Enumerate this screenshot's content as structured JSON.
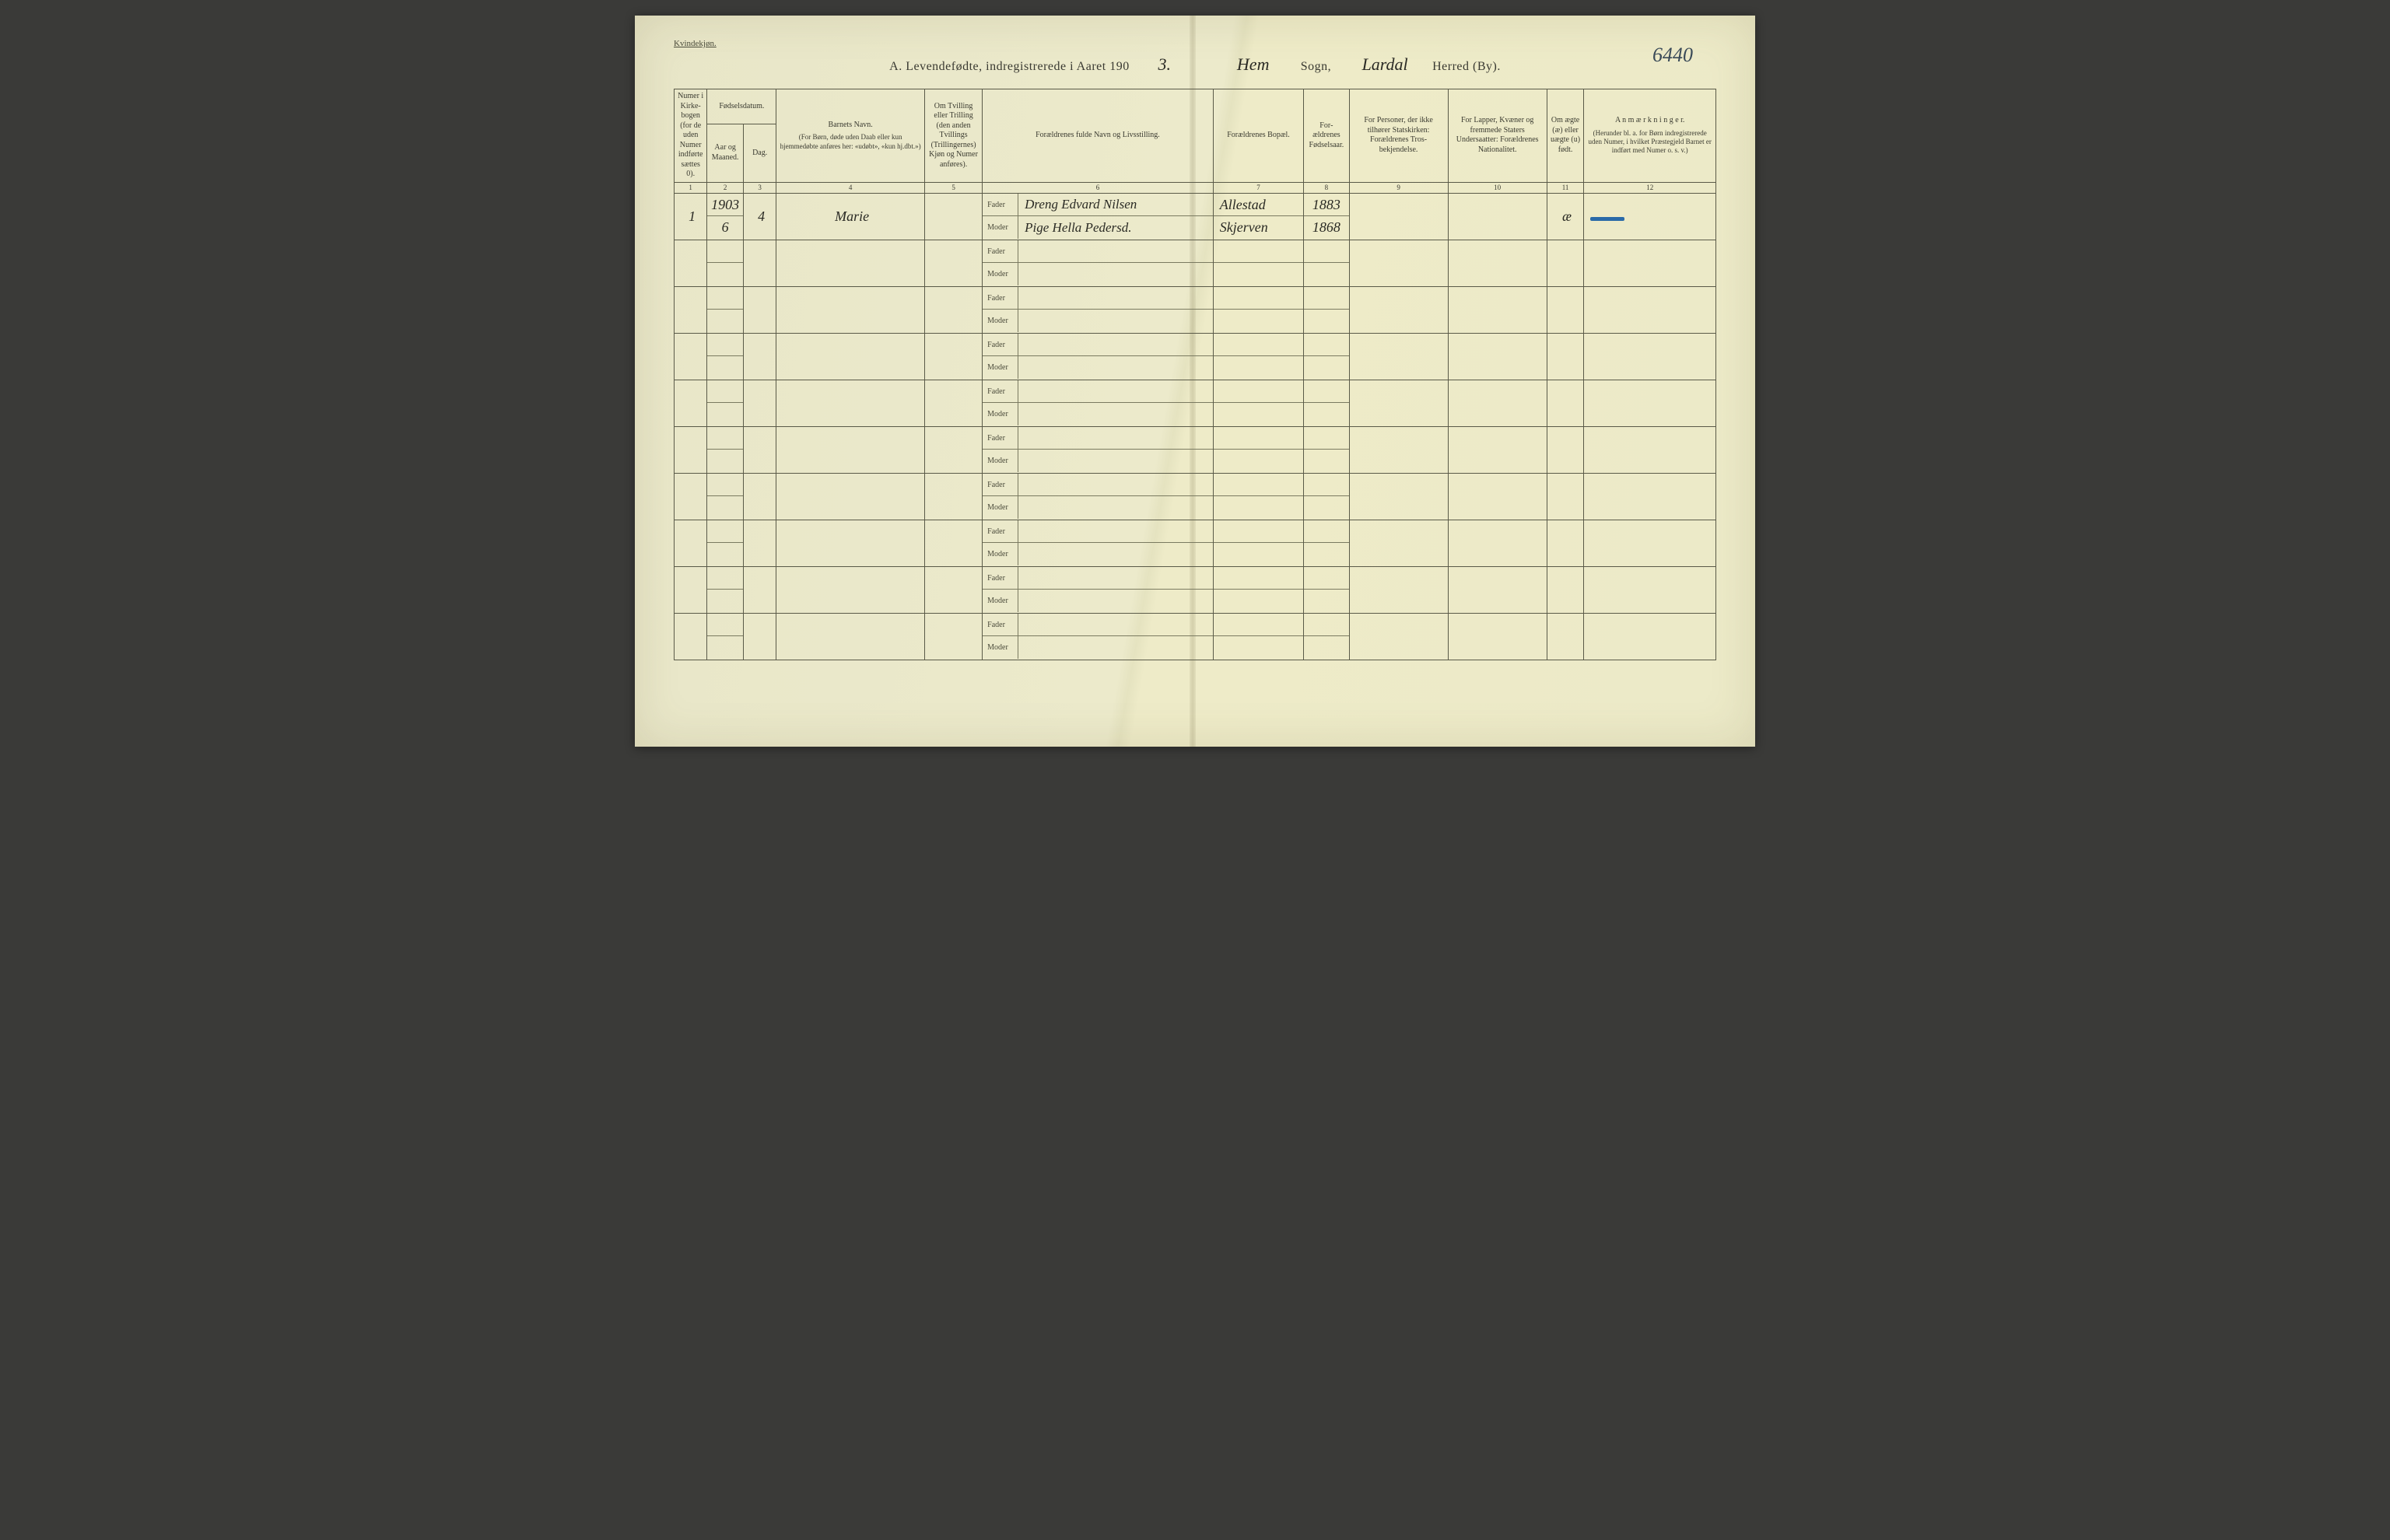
{
  "page": {
    "corner_label": "Kvindekjøn.",
    "page_number_hand": "6440",
    "background_color": "#eceac8",
    "border_color": "#5a5a48"
  },
  "title": {
    "prefix": "A.  Levendefødte, indregistrerede i Aaret 190",
    "year_suffix_hand": "3.",
    "sogn_hand": "Hem",
    "sogn_label": "Sogn,",
    "herred_hand": "Lardal",
    "herred_label": "Herred (By)."
  },
  "headers": {
    "c1": "Numer i Kirke­bogen (for de uden Numer indførte sættes 0).",
    "fodsels": "Fødselsdatum.",
    "c2": "Aar og Maaned.",
    "c3": "Dag.",
    "c4_top": "Barnets Navn.",
    "c4_sub": "(For Børn, døde uden Daab eller kun hjemmedøbte anføres her: «udøbt», «kun hj.dbt.»)",
    "c5": "Om Tvilling eller Trilling (den anden Tvillings (Trillingernes) Kjøn og Numer anføres).",
    "c6": "Forældrenes fulde Navn og Livsstilling.",
    "c7": "Forældrenes Bopæl.",
    "c8": "For­ældrenes Fødsels­aar.",
    "c9": "For Personer, der ikke tilhører Statskirken: Forældrenes Tros­bekjendelse.",
    "c10": "For Lapper, Kvæner og fremmede Staters Undersaatter: Forældrenes Nationalitet.",
    "c11": "Om ægte (æ) eller uægte (u) født.",
    "c12_top": "A n m æ r k n i n g e r.",
    "c12_sub": "(Herunder bl. a. for Børn indregistrerede uden Numer, i hvilket Præstegjeld Barnet er indført med Numer o. s. v.)"
  },
  "colnums": [
    "1",
    "2",
    "3",
    "4",
    "5",
    "6",
    "7",
    "8",
    "9",
    "10",
    "11",
    "12"
  ],
  "labels": {
    "fader": "Fader",
    "moder": "Moder"
  },
  "rows": [
    {
      "num": "1",
      "year_month_top": "1903",
      "year_month": "6",
      "day": "4",
      "name": "Marie",
      "fader": "Dreng Edvard Nilsen",
      "moder": "Pige Hella Pedersd.",
      "bopal_f": "Allestad",
      "bopal_m": "Skjerven",
      "faar_f": "1883",
      "faar_m": "1868",
      "aegte": "æ",
      "remark_mark": true
    },
    {},
    {},
    {},
    {},
    {},
    {},
    {},
    {},
    {}
  ]
}
